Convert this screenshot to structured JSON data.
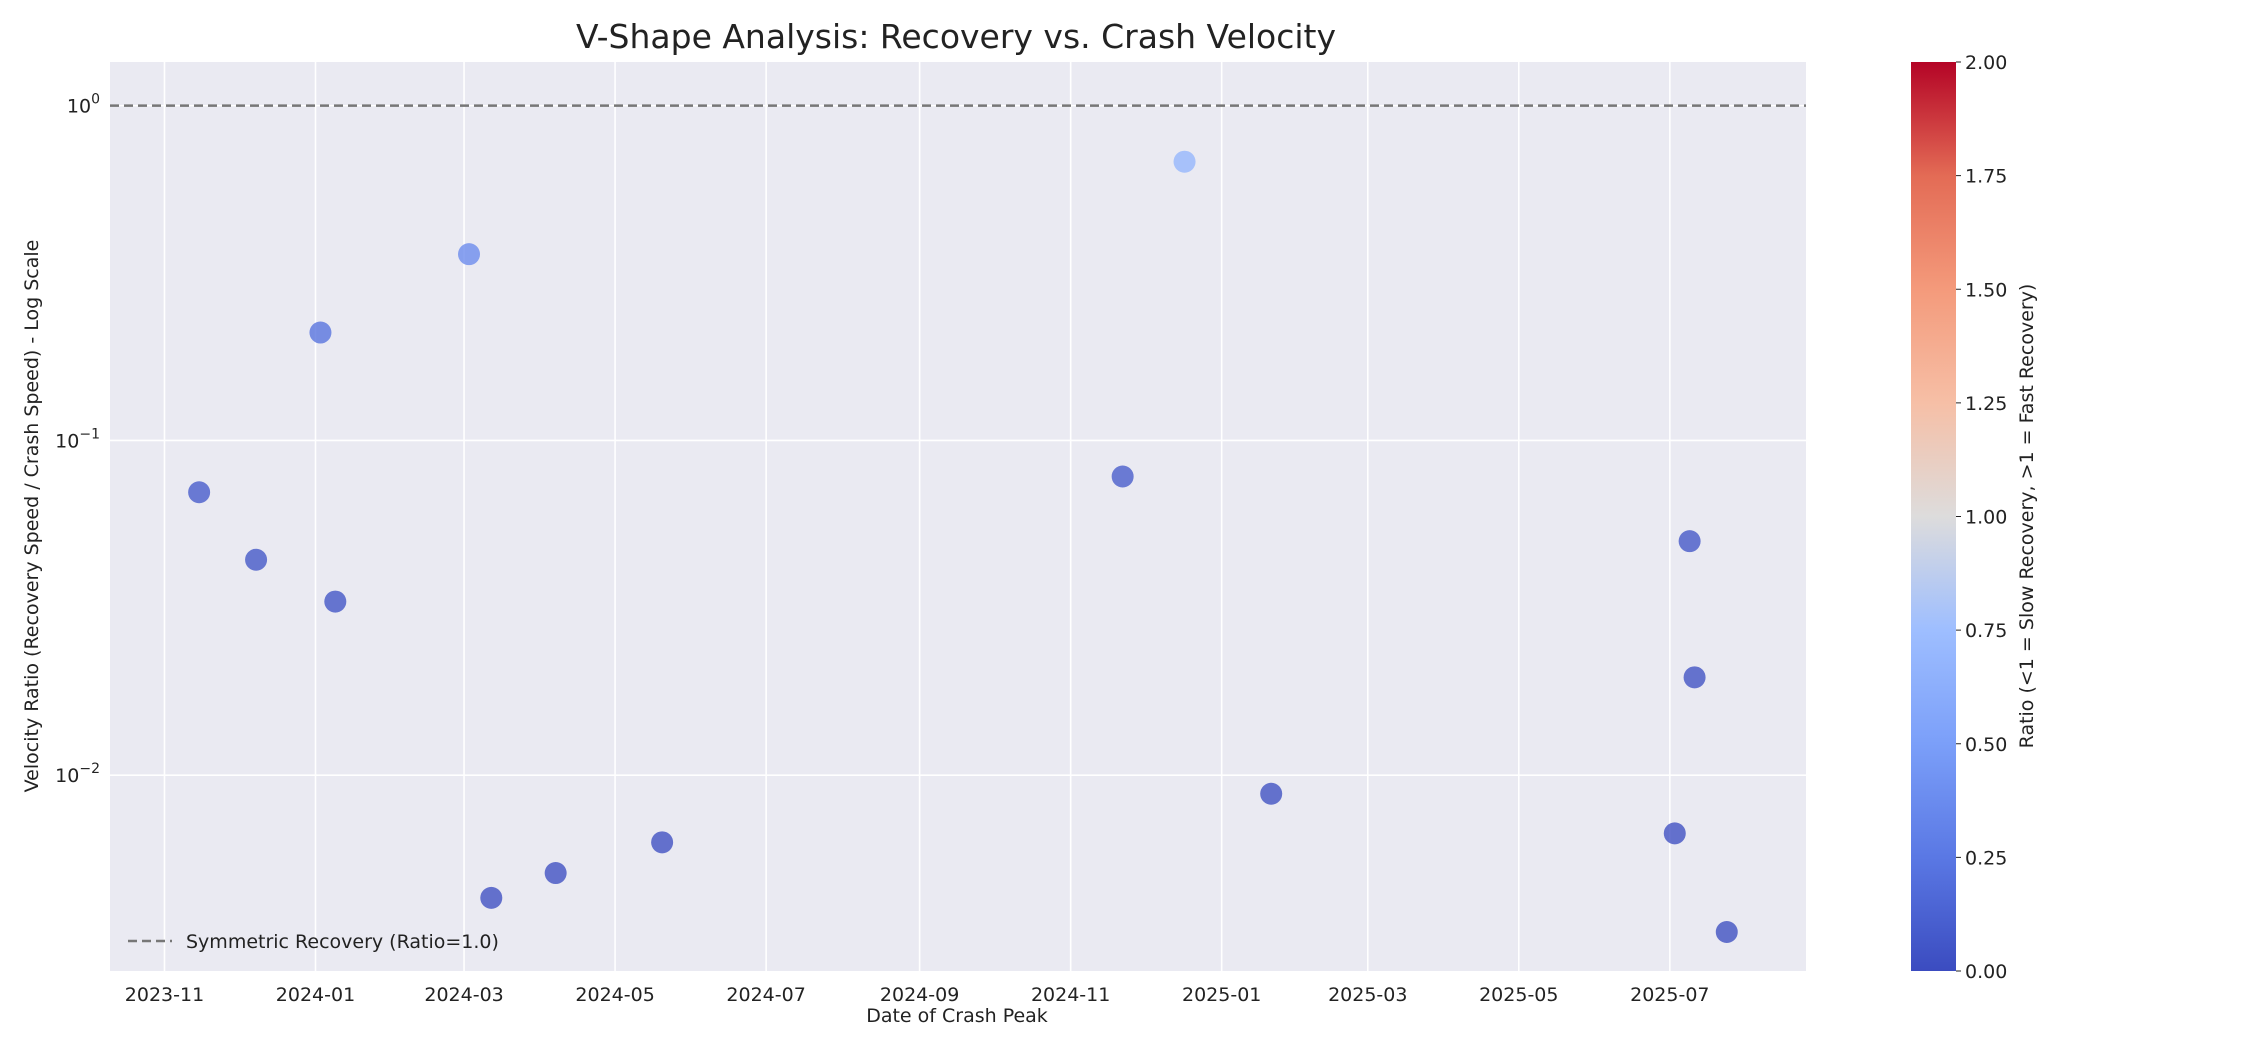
{
  "chart_data": {
    "type": "scatter",
    "title": "V-Shape Analysis: Recovery vs. Crash Velocity",
    "xlabel": "Date of Crash Peak",
    "ylabel": "Velocity Ratio (Recovery Speed / Crash Speed) - Log Scale",
    "y_scale": "log",
    "xlim": [
      "2023-10-10",
      "2025-08-25"
    ],
    "ylim": [
      0.0026,
      1.35
    ],
    "grid": true,
    "x_tick_labels": [
      "2023-11",
      "2024-01",
      "2024-03",
      "2024-05",
      "2024-07",
      "2024-09",
      "2024-11",
      "2025-01",
      "2025-03",
      "2025-05",
      "2025-07"
    ],
    "x_tick_dates": [
      "2023-11-01",
      "2024-01-01",
      "2024-03-01",
      "2024-05-01",
      "2024-07-01",
      "2024-09-01",
      "2024-11-01",
      "2025-01-01",
      "2025-03-01",
      "2025-05-01",
      "2025-07-01"
    ],
    "y_ticks": [
      {
        "value": 0.01,
        "base": "10",
        "exponent": "−2"
      },
      {
        "value": 0.1,
        "base": "10",
        "exponent": "−1"
      },
      {
        "value": 1,
        "base": "10",
        "exponent": "0"
      }
    ],
    "reference_line": {
      "y": 1.0,
      "label": "Symmetric Recovery (Ratio=1.0)",
      "color": "#777777",
      "style": "dashed"
    },
    "legend_position": "lower-left",
    "points": [
      {
        "x": "2023-11-15",
        "y": 0.07
      },
      {
        "x": "2023-12-08",
        "y": 0.044
      },
      {
        "x": "2024-01-03",
        "y": 0.21
      },
      {
        "x": "2024-01-09",
        "y": 0.033
      },
      {
        "x": "2024-03-03",
        "y": 0.36
      },
      {
        "x": "2024-03-12",
        "y": 0.0043
      },
      {
        "x": "2024-04-07",
        "y": 0.0051
      },
      {
        "x": "2024-05-20",
        "y": 0.0063
      },
      {
        "x": "2024-11-22",
        "y": 0.078
      },
      {
        "x": "2024-12-17",
        "y": 0.68
      },
      {
        "x": "2025-01-21",
        "y": 0.0088
      },
      {
        "x": "2025-07-03",
        "y": 0.0067
      },
      {
        "x": "2025-07-09",
        "y": 0.05
      },
      {
        "x": "2025-07-11",
        "y": 0.0196
      },
      {
        "x": "2025-07-24",
        "y": 0.0034
      }
    ],
    "colorbar": {
      "label": "Ratio (<1 = Slow Recovery, >1 = Fast Recovery)",
      "range": [
        0,
        2
      ],
      "ticks": [
        "0.00",
        "0.25",
        "0.50",
        "0.75",
        "1.00",
        "1.25",
        "1.50",
        "1.75",
        "2.00"
      ],
      "colormap": "coolwarm"
    },
    "colors": {
      "plot_background": "#eaeaf2",
      "grid": "#ffffff",
      "text": "#222222"
    }
  }
}
